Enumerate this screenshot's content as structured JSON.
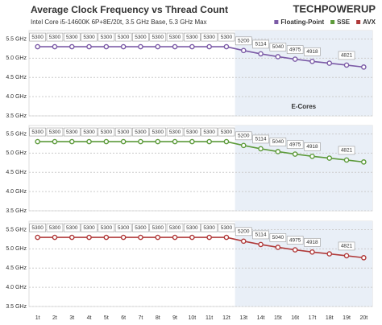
{
  "title": "Average Clock Frequency vs Thread Count",
  "subtitle": "Intel Core i5-14600K 6P+8E/20t, 3.5 GHz Base, 5.3 GHz Max",
  "logo": "TECHPOWERUP",
  "chart_data": [
    {
      "type": "line",
      "annotation": "E-Cores",
      "ylim": [
        3.5,
        5.72
      ],
      "yticks": [
        {
          "value": 3.5,
          "label": "3.5 GHz"
        },
        {
          "value": 4.0,
          "label": "4.0 GHz"
        },
        {
          "value": 4.5,
          "label": "4.5 GHz"
        },
        {
          "value": 5.0,
          "label": "5.0 GHz"
        },
        {
          "value": 5.5,
          "label": "5.5 GHz"
        }
      ],
      "grid": true,
      "series": [
        {
          "name": "Floating-Point",
          "color": "#7b5aa6",
          "values": [
            5.3,
            5.3,
            5.3,
            5.3,
            5.3,
            5.3,
            5.3,
            5.3,
            5.3,
            5.3,
            5.3,
            5.3,
            5.2,
            5.114,
            5.04,
            4.975,
            4.918,
            4.87,
            4.821,
            4.77
          ],
          "value_labels": [
            "5300",
            "5300",
            "5300",
            "5300",
            "5300",
            "5300",
            "5300",
            "5300",
            "5300",
            "5300",
            "5300",
            "5300",
            "5200",
            "5114",
            "5040",
            "4975",
            "4918",
            null,
            "4821",
            null
          ]
        }
      ]
    },
    {
      "type": "line",
      "ylim": [
        3.5,
        5.72
      ],
      "yticks": [
        {
          "value": 3.5,
          "label": "3.5 GHz"
        },
        {
          "value": 4.0,
          "label": "4.0 GHz"
        },
        {
          "value": 4.5,
          "label": "4.5 GHz"
        },
        {
          "value": 5.0,
          "label": "5.0 GHz"
        },
        {
          "value": 5.5,
          "label": "5.5 GHz"
        }
      ],
      "grid": true,
      "series": [
        {
          "name": "SSE",
          "color": "#5c9a3a",
          "values": [
            5.3,
            5.3,
            5.3,
            5.3,
            5.3,
            5.3,
            5.3,
            5.3,
            5.3,
            5.3,
            5.3,
            5.3,
            5.2,
            5.114,
            5.04,
            4.975,
            4.918,
            4.87,
            4.821,
            4.77
          ],
          "value_labels": [
            "5300",
            "5300",
            "5300",
            "5300",
            "5300",
            "5300",
            "5300",
            "5300",
            "5300",
            "5300",
            "5300",
            "5300",
            "5200",
            "5114",
            "5040",
            "4975",
            "4918",
            null,
            "4821",
            null
          ]
        }
      ]
    },
    {
      "type": "line",
      "ylim": [
        3.5,
        5.72
      ],
      "yticks": [
        {
          "value": 3.5,
          "label": "3.5 GHz"
        },
        {
          "value": 4.0,
          "label": "4.0 GHz"
        },
        {
          "value": 4.5,
          "label": "4.5 GHz"
        },
        {
          "value": 5.0,
          "label": "5.0 GHz"
        },
        {
          "value": 5.5,
          "label": "5.5 GHz"
        }
      ],
      "grid": true,
      "categories": [
        "1t",
        "2t",
        "3t",
        "4t",
        "5t",
        "6t",
        "7t",
        "8t",
        "9t",
        "10t",
        "11t",
        "12t",
        "13t",
        "14t",
        "15t",
        "16t",
        "17t",
        "18t",
        "19t",
        "20t"
      ],
      "series": [
        {
          "name": "AVX",
          "color": "#b03a3a",
          "values": [
            5.3,
            5.3,
            5.3,
            5.3,
            5.3,
            5.3,
            5.3,
            5.3,
            5.3,
            5.3,
            5.3,
            5.3,
            5.2,
            5.114,
            5.04,
            4.975,
            4.918,
            4.87,
            4.821,
            4.77
          ],
          "value_labels": [
            "5300",
            "5300",
            "5300",
            "5300",
            "5300",
            "5300",
            "5300",
            "5300",
            "5300",
            "5300",
            "5300",
            "5300",
            "5200",
            "5114",
            "5040",
            "4975",
            "4918",
            null,
            "4821",
            null
          ]
        }
      ]
    }
  ]
}
